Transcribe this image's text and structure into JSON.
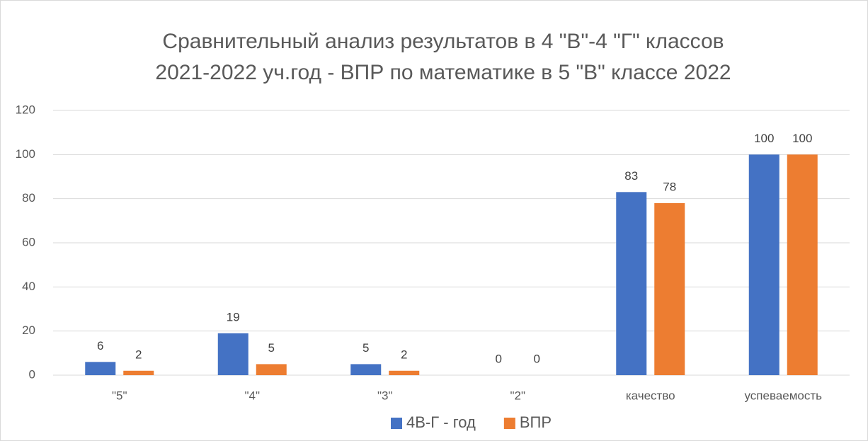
{
  "chart_data": {
    "type": "bar",
    "title": [
      "Сравнительный анализ результатов в 4 \"В\"-4 \"Г\" классов",
      "2021-2022 уч.год - ВПР по математике в 5 \"В\" классе 2022"
    ],
    "categories": [
      "\"5\"",
      "\"4\"",
      "\"3\"",
      "\"2\"",
      "качество",
      "успеваемость"
    ],
    "series": [
      {
        "name": "4В-Г - год",
        "color": "#4472c4",
        "values": [
          6,
          19,
          5,
          0,
          83,
          100
        ]
      },
      {
        "name": "ВПР",
        "color": "#ed7d31",
        "values": [
          2,
          5,
          2,
          0,
          78,
          100
        ]
      }
    ],
    "ylim": [
      0,
      120
    ],
    "yticks": [
      0,
      20,
      40,
      60,
      80,
      100,
      120
    ],
    "grid": true,
    "legend": "bottom"
  }
}
